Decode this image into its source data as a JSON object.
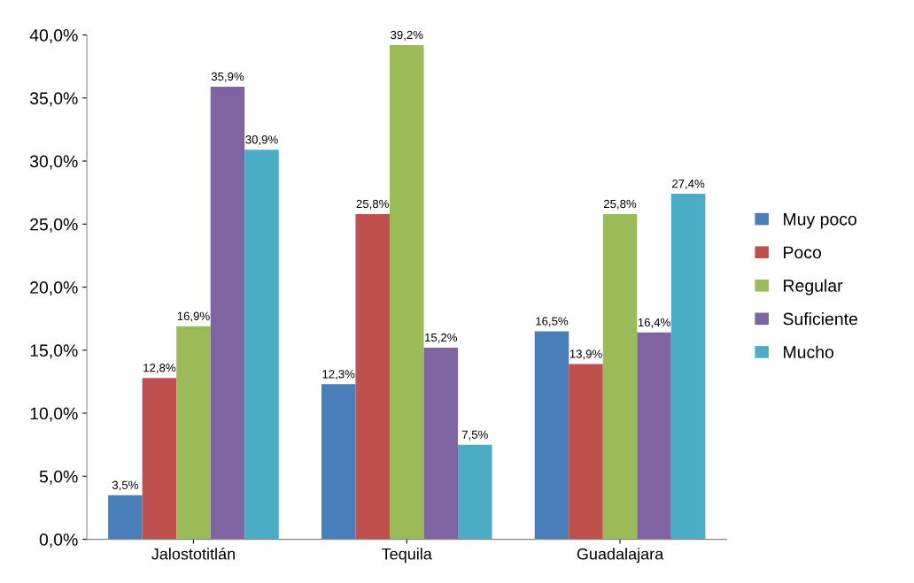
{
  "chart_data": {
    "type": "bar",
    "categories": [
      "Jalostotitlán",
      "Tequila",
      "Guadalajara"
    ],
    "series": [
      {
        "name": "Muy poco",
        "color": "#4a7ebb",
        "values": [
          3.5,
          12.3,
          16.5
        ],
        "value_labels": [
          "3,5%",
          "12,3%",
          "16,5%"
        ]
      },
      {
        "name": "Poco",
        "color": "#c0504d",
        "values": [
          12.8,
          25.8,
          13.9
        ],
        "value_labels": [
          "12,8%",
          "25,8%",
          "13,9%"
        ]
      },
      {
        "name": "Regular",
        "color": "#9bbb59",
        "values": [
          16.9,
          39.2,
          25.8
        ],
        "value_labels": [
          "16,9%",
          "39,2%",
          "25,8%"
        ]
      },
      {
        "name": "Suficiente",
        "color": "#8064a2",
        "values": [
          35.9,
          15.2,
          16.4
        ],
        "value_labels": [
          "35,9%",
          "15,2%",
          "16,4%"
        ]
      },
      {
        "name": "Mucho",
        "color": "#4bacc6",
        "values": [
          30.9,
          7.5,
          27.4
        ],
        "value_labels": [
          "30,9%",
          "7,5%",
          "27,4%"
        ]
      }
    ],
    "ylim": [
      0,
      40
    ],
    "yticks": [
      {
        "value": 0,
        "label": "0,0%"
      },
      {
        "value": 5,
        "label": "5,0%"
      },
      {
        "value": 10,
        "label": "10,0%"
      },
      {
        "value": 15,
        "label": "15,0%"
      },
      {
        "value": 20,
        "label": "20,0%"
      },
      {
        "value": 25,
        "label": "25,0%"
      },
      {
        "value": 30,
        "label": "30,0%"
      },
      {
        "value": 35,
        "label": "35,0%"
      },
      {
        "value": 40,
        "label": "40,0%"
      }
    ],
    "grid": false,
    "legend": "right"
  }
}
